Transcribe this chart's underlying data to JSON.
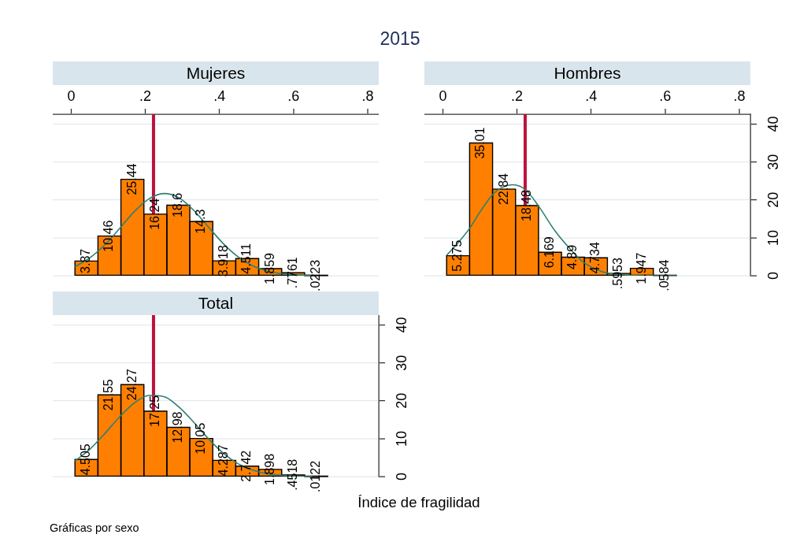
{
  "chart_data": [
    {
      "type": "other",
      "title": "2015",
      "annotations": [
        "Gráficas por sexo"
      ]
    },
    {
      "type": "histogram",
      "title": "Mujeres",
      "bins": [
        0.01,
        0.072,
        0.134,
        0.196,
        0.258,
        0.32,
        0.382,
        0.444,
        0.506,
        0.568,
        0.63,
        0.692
      ],
      "series": [
        {
          "type": "histogram",
          "color": "#ff8000",
          "values": [
            3.87,
            10.46,
            25.44,
            16.24,
            18.6,
            14.3,
            3.918,
            4.511,
            1.859,
            0.7761,
            0.0223
          ],
          "value_labels": [
            "3.87",
            "10.46",
            "25.44",
            "16.24",
            "18.6",
            "14.3",
            "3.918",
            "4.511",
            "1.859",
            ".7761",
            ".0223"
          ]
        },
        {
          "type": "line",
          "color": "#2f7f73",
          "x": [
            0.01,
            0.05,
            0.09,
            0.13,
            0.17,
            0.21,
            0.25,
            0.29,
            0.33,
            0.37,
            0.41,
            0.45,
            0.49,
            0.53,
            0.57,
            0.61,
            0.65
          ],
          "values": [
            2.4,
            4.7,
            8.1,
            12.4,
            16.9,
            20.3,
            21.7,
            20.6,
            17.3,
            12.9,
            8.5,
            5.0,
            2.6,
            1.2,
            0.5,
            0.2,
            0.1
          ]
        }
      ],
      "ref_lines": [
        {
          "axis": "x",
          "value": 0.222,
          "color": "#c0103c"
        }
      ],
      "xlim": [
        -0.05,
        0.83
      ],
      "xticks": [
        0,
        {
          "value": 0.2,
          "label": ".2"
        },
        {
          "value": 0.4,
          "label": ".4"
        },
        {
          "value": 0.6,
          "label": ".6"
        },
        {
          "value": 0.8,
          "label": ".8"
        }
      ],
      "ylim": [
        0,
        42.6
      ],
      "yticks": [
        0,
        10,
        20,
        30,
        40
      ],
      "grid": "y",
      "tick_labels": "x"
    },
    {
      "type": "histogram",
      "title": "Hombres",
      "bins": [
        0.01,
        0.072,
        0.134,
        0.196,
        0.258,
        0.32,
        0.382,
        0.444,
        0.506,
        0.568,
        0.63
      ],
      "series": [
        {
          "type": "histogram",
          "color": "#ff8000",
          "values": [
            5.275,
            35.01,
            22.84,
            18.48,
            6.169,
            4.89,
            4.734,
            0.5953,
            1.947,
            0.0584
          ],
          "value_labels": [
            "5.275",
            "35.01",
            "22.84",
            "18.48",
            "6.169",
            "4.89",
            "4.734",
            ".5953",
            "1.947",
            ".0584"
          ]
        },
        {
          "type": "line",
          "color": "#2f7f73",
          "x": [
            0.01,
            0.04,
            0.072,
            0.1,
            0.136,
            0.16,
            0.189,
            0.224,
            0.26,
            0.302,
            0.344,
            0.38,
            0.436,
            0.49,
            0.55,
            0.63
          ],
          "values": [
            5.4,
            8.6,
            12.5,
            16.8,
            21.6,
            23.3,
            24,
            22.6,
            18.1,
            11.9,
            7.0,
            3.5,
            0.9,
            0.2,
            0,
            0
          ]
        }
      ],
      "ref_lines": [
        {
          "axis": "x",
          "value": 0.222,
          "color": "#c0103c"
        }
      ],
      "xlim": [
        -0.05,
        0.83
      ],
      "xticks": [
        0,
        {
          "value": 0.2,
          "label": ".2"
        },
        {
          "value": 0.4,
          "label": ".4"
        },
        {
          "value": 0.6,
          "label": ".6"
        },
        {
          "value": 0.8,
          "label": ".8"
        }
      ],
      "ylim": [
        0,
        42.6
      ],
      "yticks": [
        0,
        10,
        20,
        30,
        40
      ],
      "grid": "y"
    },
    {
      "type": "histogram",
      "title": "Total",
      "xlabel": "Índice de fragilidad",
      "bins": [
        0.01,
        0.072,
        0.134,
        0.196,
        0.258,
        0.32,
        0.382,
        0.444,
        0.506,
        0.568,
        0.63,
        0.692
      ],
      "series": [
        {
          "type": "histogram",
          "color": "#ff8000",
          "values": [
            4.505,
            21.55,
            24.27,
            17.25,
            12.98,
            10.05,
            4.287,
            2.742,
            1.898,
            0.4518,
            0.0122
          ],
          "value_labels": [
            "4.505",
            "21.55",
            "24.27",
            "17.25",
            "12.98",
            "10.05",
            "4.287",
            "2.742",
            "1.898",
            ".4518",
            ".0122"
          ]
        },
        {
          "type": "line",
          "color": "#2f7f73",
          "x": [
            0.01,
            0.05,
            0.09,
            0.13,
            0.17,
            0.21,
            0.25,
            0.29,
            0.33,
            0.37,
            0.41,
            0.45,
            0.49,
            0.53,
            0.57,
            0.61,
            0.65
          ],
          "values": [
            4.1,
            7.2,
            11.3,
            15.7,
            19.4,
            21.4,
            21.1,
            18.4,
            14.4,
            10.0,
            6.2,
            3.4,
            1.7,
            0.7,
            0.3,
            0.1,
            0
          ]
        }
      ],
      "ref_lines": [
        {
          "axis": "x",
          "value": 0.222,
          "color": "#c0103c"
        }
      ],
      "xlim": [
        -0.05,
        0.83
      ],
      "ylim": [
        0,
        42.6
      ],
      "yticks": [
        0,
        10,
        20,
        30,
        40
      ],
      "grid": "y",
      "tick_labels": "y"
    }
  ]
}
